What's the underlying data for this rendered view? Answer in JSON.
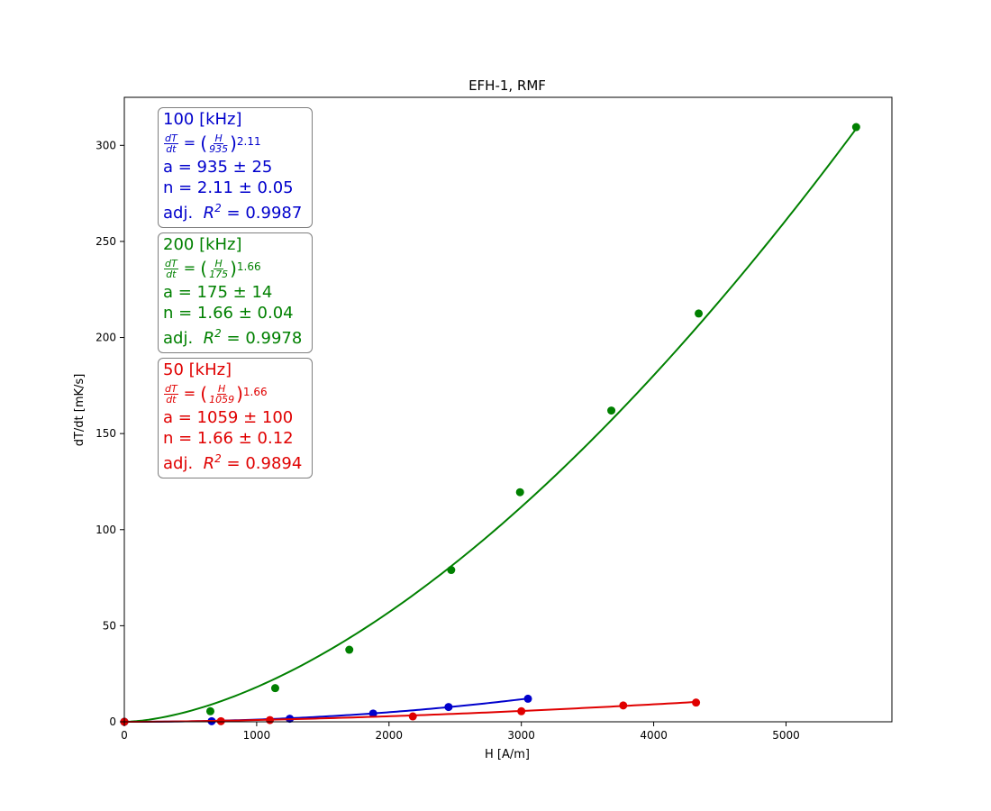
{
  "chart_data": {
    "type": "scatter",
    "title": "EFH-1, RMF",
    "xlabel": "H [A/m]",
    "ylabel": "dT/dt [mK/s]",
    "xlim": [
      0,
      5800
    ],
    "ylim": [
      0,
      325
    ],
    "xticks": [
      0,
      1000,
      2000,
      3000,
      4000,
      5000
    ],
    "yticks": [
      0,
      50,
      100,
      150,
      200,
      250,
      300
    ],
    "grid": false,
    "series": [
      {
        "name": "200 [kHz]",
        "color": "#008000",
        "points": [
          [
            0,
            0
          ],
          [
            650,
            5.5
          ],
          [
            1140,
            17.5
          ],
          [
            1700,
            37.5
          ],
          [
            2470,
            79
          ],
          [
            2990,
            119.5
          ],
          [
            3680,
            162
          ],
          [
            4340,
            212.5
          ],
          [
            5530,
            309.5
          ]
        ],
        "fit": {
          "a": 175,
          "n": 1.66,
          "x_range": [
            0,
            5530
          ]
        }
      },
      {
        "name": "100 [kHz]",
        "color": "#0000cc",
        "points": [
          [
            0,
            0
          ],
          [
            660,
            0.3
          ],
          [
            1250,
            1.6
          ],
          [
            1880,
            4.3
          ],
          [
            2450,
            7.7
          ],
          [
            3050,
            12
          ]
        ],
        "fit": {
          "a": 935,
          "n": 2.11,
          "x_range": [
            0,
            3050
          ]
        }
      },
      {
        "name": "50 [kHz]",
        "color": "#e00000",
        "points": [
          [
            0,
            0
          ],
          [
            730,
            0.3
          ],
          [
            1100,
            0.9
          ],
          [
            2180,
            2.8
          ],
          [
            3000,
            5.5
          ],
          [
            3770,
            8.5
          ],
          [
            4320,
            10
          ]
        ],
        "fit": {
          "a": 1059,
          "n": 1.66,
          "x_range": [
            0,
            4320
          ]
        }
      }
    ]
  },
  "annotations": [
    {
      "color": "#0000cc",
      "header": "100 [kHz]",
      "eq_lhs_num": "dT",
      "eq_lhs_den": "dt",
      "eq_num": "H",
      "eq_den": "935",
      "eq_exp": "2.11",
      "a_text": "a = 935 ± 25",
      "n_text": "n = 2.11 ± 0.05",
      "r2_prefix": "adj.",
      "r2_value": "= 0.9987"
    },
    {
      "color": "#008000",
      "header": "200 [kHz]",
      "eq_lhs_num": "dT",
      "eq_lhs_den": "dt",
      "eq_num": "H",
      "eq_den": "175",
      "eq_exp": "1.66",
      "a_text": "a = 175 ± 14",
      "n_text": "n = 1.66 ± 0.04",
      "r2_prefix": "adj.",
      "r2_value": "= 0.9978"
    },
    {
      "color": "#e00000",
      "header": "50 [kHz]",
      "eq_lhs_num": "dT",
      "eq_lhs_den": "dt",
      "eq_num": "H",
      "eq_den": "1059",
      "eq_exp": "1.66",
      "a_text": "a = 1059 ± 100",
      "n_text": "n = 1.66 ± 0.12",
      "r2_prefix": "adj.",
      "r2_value": "= 0.9894"
    }
  ]
}
